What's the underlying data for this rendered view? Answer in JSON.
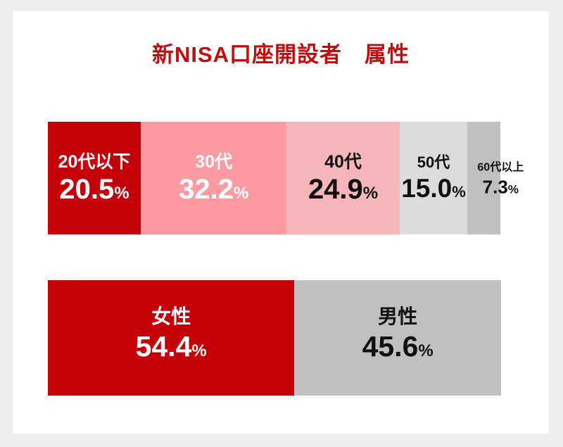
{
  "page": {
    "background": "#eeeeee",
    "card_background": "#ffffff"
  },
  "title": {
    "text": "新NISA口座開設者　属性",
    "color": "#c30d0d"
  },
  "chart_data": {
    "type": "bar",
    "subtype": "horizontal-stacked-percentage",
    "title": "新NISA口座開設者　属性",
    "legend": "none",
    "grid": false,
    "axes": "none",
    "rows": [
      {
        "name": "age-distribution",
        "categories": [
          "20代以下",
          "30代",
          "40代",
          "50代",
          "60代以上"
        ],
        "values": [
          20.5,
          32.2,
          24.9,
          15.0,
          7.3
        ],
        "segments": [
          {
            "label": "20代以下",
            "value": 20.5,
            "display": "20.5",
            "unit": "%",
            "color": "#c40009",
            "text_color": "#ffffff",
            "size": "lg",
            "label_overflow": false
          },
          {
            "label": "30代",
            "value": 32.2,
            "display": "32.2",
            "unit": "%",
            "color": "#fb9aa0",
            "text_color": "#ffffff",
            "size": "lg",
            "label_overflow": false
          },
          {
            "label": "40代",
            "value": 24.9,
            "display": "24.9",
            "unit": "%",
            "color": "#f5b6b9",
            "text_color": "#111111",
            "size": "lg",
            "label_overflow": false
          },
          {
            "label": "50代",
            "value": 15.0,
            "display": "15.0",
            "unit": "%",
            "color": "#dcdcdc",
            "text_color": "#111111",
            "size": "md",
            "label_overflow": false
          },
          {
            "label": "60代以上",
            "value": 7.3,
            "display": "7.3",
            "unit": "%",
            "color": "#bfbfbf",
            "text_color": "#111111",
            "size": "sm",
            "label_overflow": true
          }
        ]
      },
      {
        "name": "gender-distribution",
        "categories": [
          "女性",
          "男性"
        ],
        "values": [
          54.4,
          45.6
        ],
        "segments": [
          {
            "label": "女性",
            "value": 54.4,
            "display": "54.4",
            "unit": "%",
            "color": "#c40009",
            "text_color": "#ffffff",
            "size": "xl",
            "label_overflow": false
          },
          {
            "label": "男性",
            "value": 45.6,
            "display": "45.6",
            "unit": "%",
            "color": "#c0c0c0",
            "text_color": "#111111",
            "size": "xl",
            "label_overflow": false
          }
        ]
      }
    ]
  }
}
